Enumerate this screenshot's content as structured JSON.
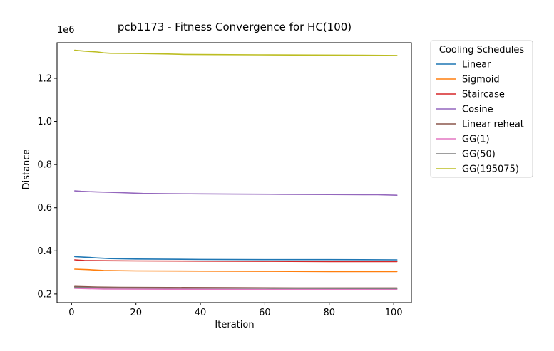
{
  "chart_data": {
    "type": "line",
    "title": "pcb1173 - Fitness Convergence for HC(100)",
    "xlabel": "Iteration",
    "ylabel": "Distance",
    "offset_text": "1e6",
    "xlim": [
      -4.5,
      105.5
    ],
    "ylim": [
      160000,
      1365000
    ],
    "xticks": [
      0,
      20,
      40,
      60,
      80,
      100
    ],
    "yticks": [
      200000,
      400000,
      600000,
      800000,
      1000000,
      1200000
    ],
    "ytick_labels": [
      "0.2",
      "0.4",
      "0.6",
      "0.8",
      "1.0",
      "1.2"
    ],
    "grid": false,
    "legend": {
      "title": "Cooling Schedules",
      "placement": "outside-top-right"
    },
    "series": [
      {
        "name": "Linear",
        "color": "#1f77b4",
        "points": [
          [
            1,
            373000
          ],
          [
            5,
            370000
          ],
          [
            8,
            367000
          ],
          [
            12,
            364000
          ],
          [
            20,
            362000
          ],
          [
            40,
            360000
          ],
          [
            60,
            359000
          ],
          [
            80,
            359000
          ],
          [
            101,
            358000
          ]
        ]
      },
      {
        "name": "Sigmoid",
        "color": "#ff7f0e",
        "points": [
          [
            1,
            315000
          ],
          [
            5,
            313000
          ],
          [
            10,
            309000
          ],
          [
            20,
            307000
          ],
          [
            40,
            306000
          ],
          [
            60,
            305000
          ],
          [
            80,
            304000
          ],
          [
            101,
            304000
          ]
        ]
      },
      {
        "name": "Staircase",
        "color": "#d62728",
        "points": [
          [
            1,
            358000
          ],
          [
            4,
            355000
          ],
          [
            10,
            354000
          ],
          [
            20,
            353000
          ],
          [
            40,
            352000
          ],
          [
            60,
            351000
          ],
          [
            80,
            350000
          ],
          [
            101,
            350000
          ]
        ]
      },
      {
        "name": "Cosine",
        "color": "#9467bd",
        "points": [
          [
            1,
            678000
          ],
          [
            3,
            676000
          ],
          [
            8,
            673000
          ],
          [
            15,
            670000
          ],
          [
            22,
            666000
          ],
          [
            30,
            665000
          ],
          [
            40,
            664000
          ],
          [
            50,
            663000
          ],
          [
            65,
            662000
          ],
          [
            80,
            661000
          ],
          [
            95,
            660000
          ],
          [
            101,
            658000
          ]
        ]
      },
      {
        "name": "Linear reheat",
        "color": "#8c564b",
        "points": [
          [
            1,
            235000
          ],
          [
            8,
            232000
          ],
          [
            15,
            231000
          ],
          [
            30,
            230000
          ],
          [
            50,
            229000
          ],
          [
            70,
            228000
          ],
          [
            101,
            228000
          ]
        ]
      },
      {
        "name": "GG(1)",
        "color": "#e377c2",
        "points": [
          [
            1,
            226000
          ],
          [
            10,
            223000
          ],
          [
            30,
            222000
          ],
          [
            60,
            221000
          ],
          [
            101,
            220000
          ]
        ]
      },
      {
        "name": "GG(50)",
        "color": "#7f7f7f",
        "points": [
          [
            1,
            231000
          ],
          [
            10,
            228000
          ],
          [
            30,
            227000
          ],
          [
            60,
            226000
          ],
          [
            101,
            225000
          ]
        ]
      },
      {
        "name": "GG(195075)",
        "color": "#bcbd22",
        "points": [
          [
            1,
            1330000
          ],
          [
            4,
            1326000
          ],
          [
            8,
            1322000
          ],
          [
            10,
            1318000
          ],
          [
            12,
            1316000
          ],
          [
            20,
            1315000
          ],
          [
            30,
            1313000
          ],
          [
            35,
            1311000
          ],
          [
            45,
            1310000
          ],
          [
            58,
            1309000
          ],
          [
            75,
            1308000
          ],
          [
            90,
            1307000
          ],
          [
            101,
            1306000
          ]
        ]
      }
    ]
  }
}
